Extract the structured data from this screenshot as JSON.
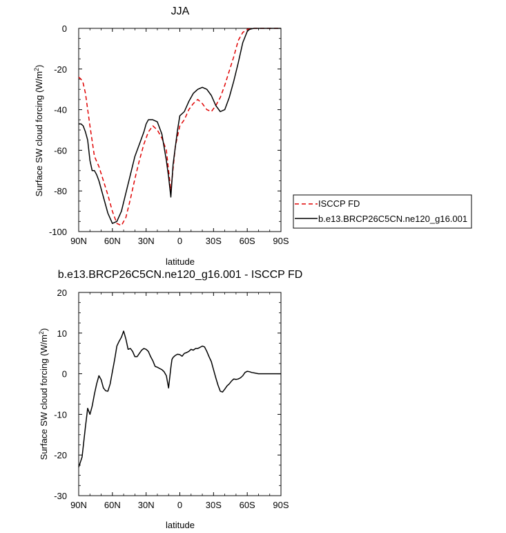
{
  "chart_data": [
    {
      "type": "line",
      "title": "JJA",
      "xlabel": "latitude",
      "ylabel_main": "Surface SW cloud forcing (W/m",
      "ylabel_sup": "2",
      "ylabel_tail": ")",
      "xlim": [
        90,
        -90
      ],
      "ylim": [
        -100,
        0
      ],
      "xticks": [
        90,
        60,
        30,
        0,
        -30,
        -60,
        -90
      ],
      "xtick_labels": [
        "90N",
        "60N",
        "30N",
        "0",
        "30S",
        "60S",
        "90S"
      ],
      "yticks": [
        0,
        -20,
        -40,
        -60,
        -80,
        -100
      ],
      "ytick_labels": [
        "0",
        "-20",
        "-40",
        "-60",
        "-80",
        "-100"
      ],
      "legend": "right",
      "series": [
        {
          "name": "ISCCP FD",
          "color": "#e00000",
          "dash": "dashed",
          "x": [
            90,
            88,
            86,
            84,
            80,
            76,
            72,
            68,
            64,
            60,
            56,
            52,
            48,
            44,
            40,
            36,
            32,
            28,
            24,
            20,
            16,
            12,
            8,
            4,
            0,
            -4,
            -8,
            -12,
            -16,
            -20,
            -24,
            -28,
            -32,
            -36,
            -40,
            -44,
            -48,
            -52,
            -56,
            -60,
            -62,
            -64,
            -66,
            -68,
            -70,
            -75,
            -80,
            -85,
            -90
          ],
          "y": [
            -24,
            -25,
            -27,
            -32,
            -48,
            -63,
            -68,
            -75,
            -82,
            -90,
            -96,
            -97,
            -93,
            -84,
            -74,
            -65,
            -57,
            -51,
            -48,
            -50,
            -54,
            -60,
            -80,
            -58,
            -48,
            -45,
            -40,
            -37,
            -35,
            -37,
            -40,
            -41,
            -38,
            -34,
            -28,
            -21,
            -14,
            -6,
            -2,
            -0.5,
            -0.3,
            -0.2,
            0,
            0,
            0,
            0,
            0,
            0,
            0
          ]
        },
        {
          "name": "b.e13.BRCP26C5CN.ne120_g16.001",
          "color": "#000000",
          "dash": "solid",
          "x": [
            90,
            88,
            86,
            84,
            82,
            80,
            78,
            76,
            74,
            72,
            68,
            64,
            60,
            56,
            52,
            48,
            44,
            40,
            36,
            32,
            30,
            28,
            24,
            20,
            16,
            12,
            10,
            8,
            6,
            2,
            0,
            -4,
            -8,
            -12,
            -16,
            -20,
            -24,
            -28,
            -32,
            -36,
            -40,
            -44,
            -48,
            -52,
            -56,
            -60,
            -62,
            -64,
            -66,
            -68,
            -70,
            -75,
            -80,
            -85,
            -90
          ],
          "y": [
            -47,
            -47,
            -48,
            -51,
            -55,
            -65,
            -70,
            -70,
            -72,
            -75,
            -83,
            -91,
            -96,
            -95,
            -90,
            -81,
            -72,
            -63,
            -57,
            -51,
            -47,
            -45,
            -45,
            -46,
            -52,
            -65,
            -73,
            -83,
            -67,
            -50,
            -43,
            -41,
            -36,
            -32,
            -30,
            -29,
            -30,
            -33,
            -38,
            -41,
            -40,
            -34,
            -26,
            -17,
            -7,
            -1.5,
            -0.5,
            -0.2,
            0,
            0,
            0,
            0,
            0,
            0,
            0
          ]
        }
      ]
    },
    {
      "type": "line",
      "title": "b.e13.BRCP26C5CN.ne120_g16.001 - ISCCP FD",
      "xlabel": "latitude",
      "ylabel_main": "Surface SW cloud forcing (W/m",
      "ylabel_sup": "2",
      "ylabel_tail": ")",
      "xlim": [
        90,
        -90
      ],
      "ylim": [
        -30,
        20
      ],
      "xticks": [
        90,
        60,
        30,
        0,
        -30,
        -60,
        -90
      ],
      "xtick_labels": [
        "90N",
        "60N",
        "30N",
        "0",
        "30S",
        "60S",
        "90S"
      ],
      "yticks": [
        20,
        10,
        0,
        -10,
        -20,
        -30
      ],
      "ytick_labels": [
        "20",
        "10",
        "0",
        "-10",
        "-20",
        "-30"
      ],
      "series": [
        {
          "color": "#000000",
          "dash": "solid",
          "x": [
            90,
            87,
            84,
            82,
            80,
            78,
            76,
            74,
            72,
            70,
            68,
            66,
            64,
            62,
            60,
            58,
            56,
            54,
            52,
            50,
            48,
            46,
            44,
            42,
            40,
            38,
            36,
            34,
            32,
            30,
            28,
            26,
            24,
            22,
            20,
            18,
            16,
            14,
            12,
            10,
            8,
            7,
            6,
            4,
            2,
            0,
            -2,
            -4,
            -6,
            -8,
            -10,
            -12,
            -14,
            -16,
            -18,
            -20,
            -22,
            -24,
            -26,
            -28,
            -30,
            -32,
            -34,
            -36,
            -38,
            -40,
            -42,
            -44,
            -46,
            -48,
            -50,
            -52,
            -54,
            -56,
            -58,
            -60,
            -62,
            -64,
            -66,
            -68,
            -70,
            -74,
            -78,
            -82,
            -86,
            -90
          ],
          "y": [
            -23,
            -20.5,
            -13,
            -8.5,
            -10,
            -8,
            -5,
            -2.5,
            -0.5,
            -1.5,
            -3.5,
            -4.2,
            -4.3,
            -2.5,
            0.5,
            3.5,
            6.8,
            8,
            9,
            10.5,
            8.5,
            6,
            6.2,
            5.5,
            4.2,
            4.2,
            5,
            5.8,
            6.2,
            6,
            5.5,
            4.2,
            3.2,
            1.8,
            1.6,
            1.3,
            1.0,
            0.5,
            -0.5,
            -3.5,
            1.5,
            3.5,
            4,
            4.5,
            4.8,
            4.7,
            4.3,
            5,
            5.2,
            5.5,
            6,
            5.8,
            6.2,
            6.2,
            6.5,
            6.8,
            6.6,
            5.5,
            4.2,
            3,
            1,
            -1,
            -2.8,
            -4.3,
            -4.5,
            -3.8,
            -3,
            -2.5,
            -1.8,
            -1.3,
            -1.4,
            -1.3,
            -1,
            -0.5,
            0.3,
            0.6,
            0.5,
            0.3,
            0.2,
            0.1,
            0,
            0,
            0,
            0,
            0,
            0
          ]
        }
      ]
    }
  ]
}
